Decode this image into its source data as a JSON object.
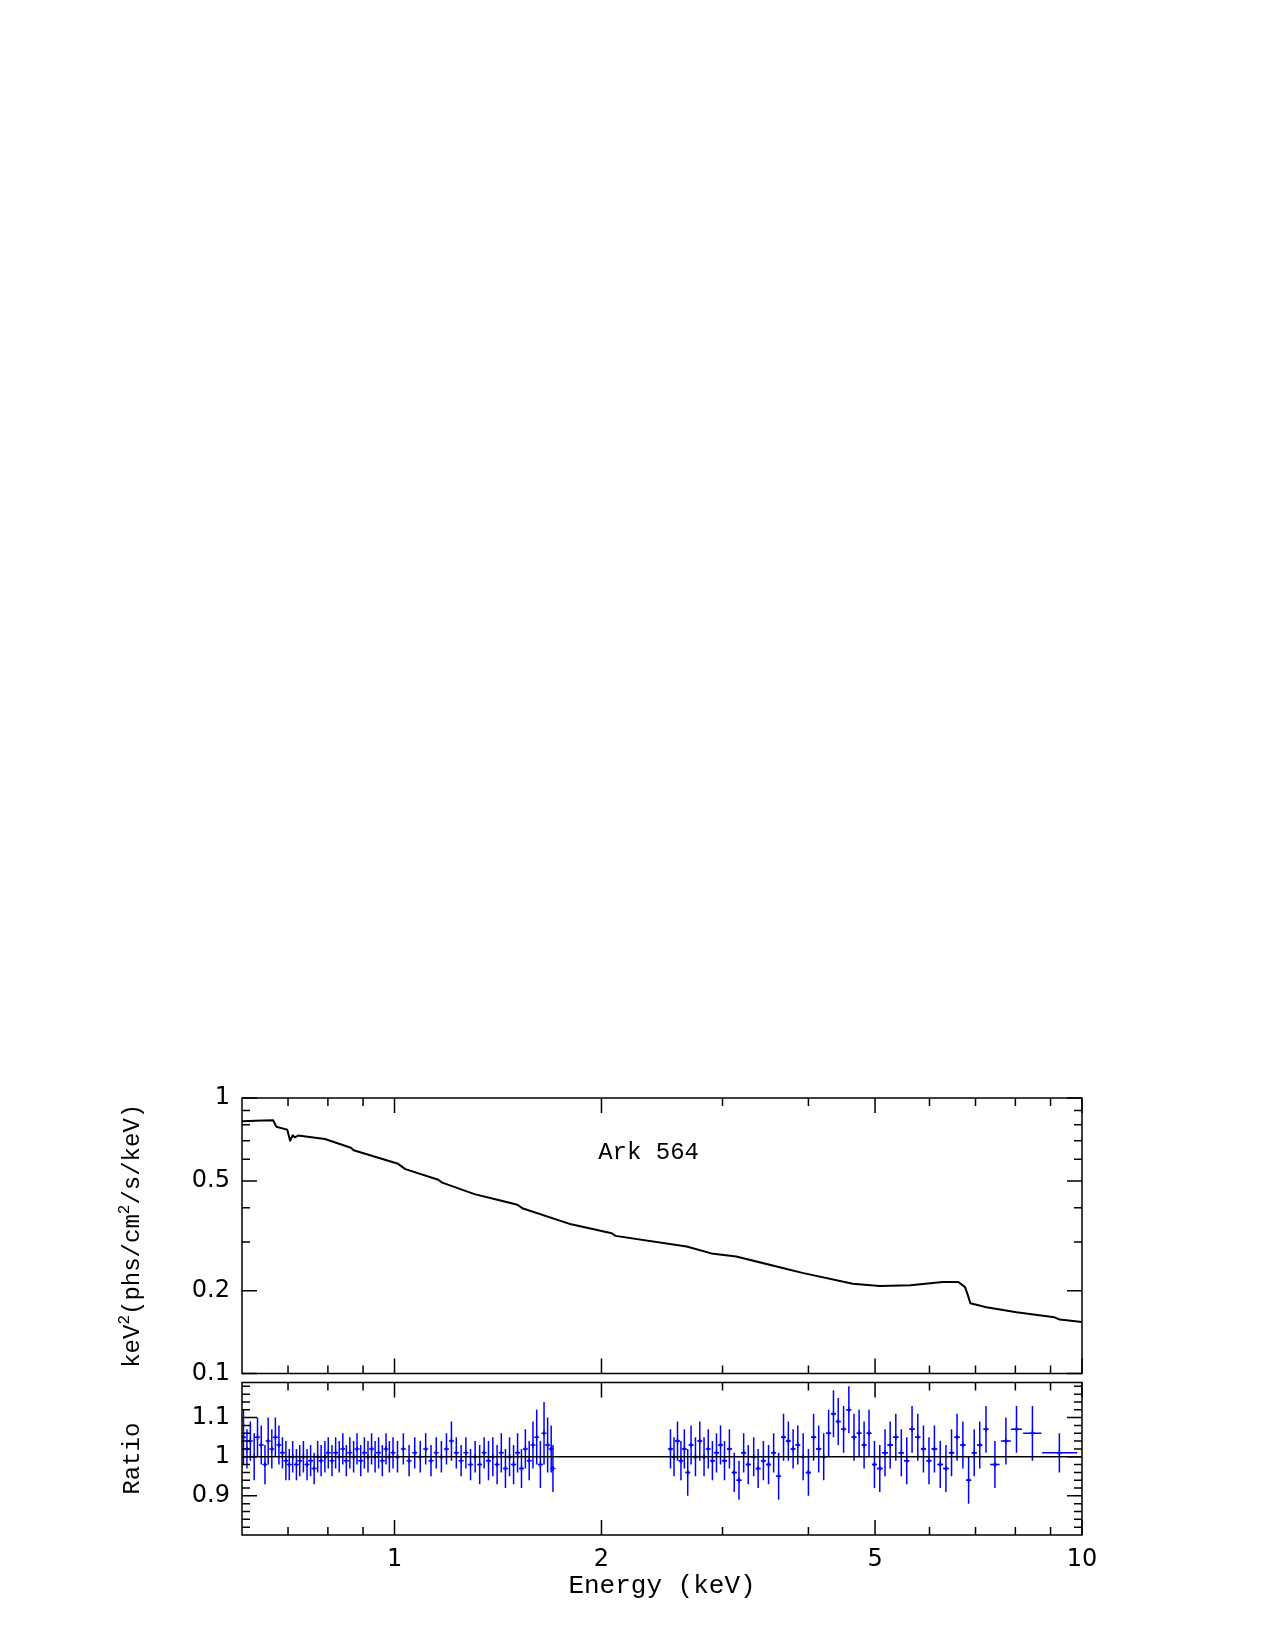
{
  "chart_data": [
    {
      "type": "line",
      "ylabel": "keV$^{2}$(phs/cm$^{2}$/s/keV)",
      "annotations": [
        "Ark 564"
      ],
      "log": "xy",
      "grid": false,
      "legend": false,
      "marker": "none",
      "line_style": "solid",
      "tick_labels": "y",
      "xlim": [
        0.6,
        10
      ],
      "xticks": [
        {
          "value": 0.7,
          "label": null
        },
        {
          "value": 0.8,
          "label": null
        },
        {
          "value": 0.9,
          "label": null
        },
        1,
        2,
        {
          "value": 3,
          "label": null
        },
        {
          "value": 4,
          "label": null
        },
        5,
        {
          "value": 6,
          "label": null
        },
        {
          "value": 7,
          "label": null
        },
        {
          "value": 8,
          "label": null
        },
        {
          "value": 9,
          "label": null
        },
        10
      ],
      "ylim": [
        0.1,
        1
      ],
      "yticks": [
        0.1,
        0.2,
        {
          "value": 0.3,
          "label": null
        },
        {
          "value": 0.4,
          "label": null
        },
        0.5,
        {
          "value": 0.6,
          "label": null
        },
        {
          "value": 0.7,
          "label": null
        },
        {
          "value": 0.8,
          "label": null
        },
        {
          "value": 0.9,
          "label": null
        },
        1
      ],
      "series": [
        {
          "color": "#000000",
          "x": [
            0.6,
            0.666,
            0.673,
            0.698,
            0.705,
            0.711,
            0.716,
            0.724,
            0.792,
            0.864,
            0.872,
            1.012,
            1.037,
            1.158,
            1.173,
            1.307,
            1.509,
            1.538,
            1.807,
            2.07,
            2.096,
            2.66,
            2.89,
            3.14,
            3.92,
            4.64,
            5.08,
            5.63,
            6.27,
            6.61,
            6.76,
            6.83,
            6.88,
            7.26,
            8.03,
            9.12,
            9.28,
            10
          ],
          "values": [
            0.824,
            0.83,
            0.787,
            0.768,
            0.7,
            0.732,
            0.72,
            0.731,
            0.71,
            0.66,
            0.646,
            0.577,
            0.552,
            0.505,
            0.493,
            0.448,
            0.41,
            0.397,
            0.348,
            0.323,
            0.316,
            0.289,
            0.273,
            0.266,
            0.232,
            0.212,
            0.208,
            0.209,
            0.215,
            0.215,
            0.206,
            0.191,
            0.18,
            0.174,
            0.167,
            0.16,
            0.157,
            0.154
          ]
        }
      ]
    },
    {
      "type": "scatter",
      "xlabel": "Energy (keV)",
      "ylabel": "Ratio",
      "log": "x",
      "grid": false,
      "legend": false,
      "marker": "cross",
      "xlim": [
        0.6,
        10
      ],
      "xticks": [
        {
          "value": 0.7,
          "label": null
        },
        {
          "value": 0.8,
          "label": null
        },
        {
          "value": 0.9,
          "label": null
        },
        1,
        2,
        {
          "value": 3,
          "label": null
        },
        {
          "value": 4,
          "label": null
        },
        5,
        {
          "value": 6,
          "label": null
        },
        {
          "value": 7,
          "label": null
        },
        {
          "value": 8,
          "label": null
        },
        {
          "value": 9,
          "label": null
        },
        10
      ],
      "ylim": [
        0.8,
        1.19
      ],
      "yticks": [
        {
          "value": 0.82,
          "label": null
        },
        {
          "value": 0.84,
          "label": null
        },
        {
          "value": 0.86,
          "label": null
        },
        {
          "value": 0.88,
          "label": null
        },
        0.9,
        {
          "value": 0.92,
          "label": null
        },
        {
          "value": 0.94,
          "label": null
        },
        {
          "value": 0.96,
          "label": null
        },
        {
          "value": 0.98,
          "label": null
        },
        1,
        {
          "value": 1.02,
          "label": null
        },
        {
          "value": 1.04,
          "label": null
        },
        {
          "value": 1.06,
          "label": null
        },
        {
          "value": 1.08,
          "label": null
        },
        1.1,
        {
          "value": 1.12,
          "label": null
        },
        {
          "value": 1.14,
          "label": null
        },
        {
          "value": 1.16,
          "label": null
        },
        {
          "value": 1.18,
          "label": null
        }
      ],
      "ref_lines": [
        {
          "axis": "y",
          "value": 1,
          "color": "#000000"
        }
      ],
      "series": [
        {
          "color": "#0000ff",
          "x": [
            0.603,
            0.61,
            0.617,
            0.625,
            0.632,
            0.64,
            0.648,
            0.655,
            0.663,
            0.671,
            0.679,
            0.687,
            0.695,
            0.703,
            0.711,
            0.72,
            0.728,
            0.737,
            0.746,
            0.755,
            0.764,
            0.773,
            0.782,
            0.792,
            0.801,
            0.811,
            0.821,
            0.831,
            0.841,
            0.851,
            0.861,
            0.872,
            0.882,
            0.893,
            0.904,
            0.915,
            0.926,
            0.937,
            0.948,
            0.96,
            0.972,
            0.983,
            0.995,
            1.01,
            1.03,
            1.05,
            1.07,
            1.09,
            1.11,
            1.13,
            1.15,
            1.17,
            1.19,
            1.21,
            1.23,
            1.25,
            1.27,
            1.29,
            1.31,
            1.33,
            1.35,
            1.37,
            1.39,
            1.41,
            1.43,
            1.45,
            1.47,
            1.49,
            1.51,
            1.53,
            1.55,
            1.57,
            1.59,
            1.61,
            1.63,
            1.65,
            1.67,
            1.69,
            1.7,
            2.52,
            2.55,
            2.58,
            2.61,
            2.64,
            2.67,
            2.7,
            2.74,
            2.78,
            2.82,
            2.86,
            2.9,
            2.94,
            2.98,
            3.02,
            3.07,
            3.12,
            3.17,
            3.22,
            3.27,
            3.33,
            3.38,
            3.44,
            3.5,
            3.56,
            3.62,
            3.68,
            3.74,
            3.8,
            3.86,
            3.93,
            4.0,
            4.07,
            4.14,
            4.21,
            4.28,
            4.35,
            4.42,
            4.5,
            4.58,
            4.66,
            4.74,
            4.82,
            4.9,
            4.99,
            5.08,
            5.17,
            5.26,
            5.36,
            5.46,
            5.56,
            5.66,
            5.77,
            5.88,
            5.99,
            6.1,
            6.22,
            6.34,
            6.46,
            6.58,
            6.71,
            6.84,
            6.97,
            7.1,
            7.25,
            7.47,
            7.75,
            8.03,
            8.47,
            9.27
          ],
          "values": [
            1.05,
            1.02,
            1.04,
            1.0,
            1.05,
            1.03,
            0.98,
            1.04,
            1.02,
            1.05,
            1.03,
            1.01,
            0.99,
            0.98,
            1.0,
            0.98,
            0.99,
            1.0,
            0.98,
            0.99,
            0.97,
            1.0,
            0.99,
            1.0,
            1.01,
            0.99,
            1.01,
            1.0,
            1.02,
            0.99,
            1.01,
            1.0,
            1.02,
            0.99,
            1.01,
            1.0,
            1.02,
            1.0,
            1.01,
            0.99,
            1.02,
            1.0,
            1.01,
            1.0,
            1.02,
            0.99,
            1.01,
            1.0,
            1.02,
            0.99,
            1.01,
            1.0,
            1.02,
            1.04,
            1.01,
            0.99,
            1.01,
            0.98,
            1.0,
            0.98,
            1.01,
            0.99,
            1.0,
            0.98,
            1.01,
            0.97,
            1.0,
            0.98,
            1.01,
            0.97,
            1.02,
            0.99,
            1.03,
            1.05,
            0.98,
            1.06,
            1.03,
            1.02,
            0.97,
            1.02,
            1.0,
            1.04,
            0.99,
            1.02,
            0.96,
            1.03,
            1.0,
            1.04,
            1.0,
            1.02,
            0.99,
            1.01,
            1.03,
            0.99,
            1.02,
            0.96,
            0.94,
            1.01,
            0.98,
            1.0,
            0.97,
            0.99,
            0.98,
            1.01,
            0.95,
            1.05,
            1.04,
            1.02,
            1.03,
            1.0,
            0.96,
            1.05,
            1.02,
            1.0,
            1.06,
            1.11,
            1.09,
            1.07,
            1.12,
            1.05,
            1.06,
            1.03,
            1.06,
            0.98,
            0.97,
            1.01,
            1.03,
            1.05,
            1.01,
            0.99,
            1.07,
            1.05,
            1.02,
            0.99,
            1.02,
            0.98,
            0.97,
            1.01,
            1.05,
            1.03,
            0.94,
            1.01,
            1.03,
            1.07,
            0.98,
            1.04,
            1.07,
            1.06,
            1.01
          ],
          "errors": [
            0.07,
            0.05,
            0.05,
            0.06,
            0.05,
            0.05,
            0.05,
            0.06,
            0.05,
            0.05,
            0.05,
            0.04,
            0.05,
            0.04,
            0.04,
            0.04,
            0.04,
            0.04,
            0.04,
            0.04,
            0.04,
            0.04,
            0.04,
            0.04,
            0.04,
            0.04,
            0.04,
            0.04,
            0.04,
            0.04,
            0.04,
            0.04,
            0.04,
            0.04,
            0.04,
            0.04,
            0.04,
            0.04,
            0.04,
            0.04,
            0.04,
            0.04,
            0.04,
            0.04,
            0.04,
            0.04,
            0.04,
            0.04,
            0.04,
            0.04,
            0.04,
            0.04,
            0.04,
            0.05,
            0.04,
            0.04,
            0.04,
            0.04,
            0.04,
            0.05,
            0.04,
            0.05,
            0.05,
            0.05,
            0.05,
            0.05,
            0.05,
            0.05,
            0.05,
            0.05,
            0.05,
            0.05,
            0.06,
            0.07,
            0.06,
            0.08,
            0.07,
            0.06,
            0.06,
            0.05,
            0.05,
            0.05,
            0.05,
            0.05,
            0.06,
            0.05,
            0.05,
            0.05,
            0.05,
            0.05,
            0.05,
            0.05,
            0.05,
            0.05,
            0.05,
            0.05,
            0.05,
            0.05,
            0.05,
            0.05,
            0.05,
            0.05,
            0.05,
            0.05,
            0.06,
            0.06,
            0.05,
            0.05,
            0.05,
            0.06,
            0.06,
            0.06,
            0.06,
            0.06,
            0.06,
            0.06,
            0.06,
            0.06,
            0.06,
            0.06,
            0.06,
            0.06,
            0.06,
            0.06,
            0.06,
            0.06,
            0.06,
            0.06,
            0.06,
            0.06,
            0.06,
            0.06,
            0.06,
            0.06,
            0.06,
            0.06,
            0.06,
            0.06,
            0.06,
            0.06,
            0.06,
            0.06,
            0.06,
            0.06,
            0.06,
            0.06,
            0.06,
            0.07,
            0.05
          ],
          "xerrors": [
            null,
            null,
            null,
            null,
            null,
            null,
            null,
            null,
            null,
            null,
            null,
            null,
            null,
            null,
            null,
            null,
            null,
            null,
            null,
            null,
            null,
            null,
            null,
            null,
            null,
            null,
            null,
            null,
            null,
            null,
            null,
            null,
            null,
            null,
            null,
            null,
            null,
            null,
            null,
            null,
            null,
            null,
            null,
            null,
            null,
            null,
            null,
            null,
            null,
            null,
            null,
            null,
            null,
            null,
            null,
            null,
            null,
            null,
            null,
            null,
            null,
            null,
            null,
            null,
            null,
            null,
            null,
            null,
            null,
            null,
            null,
            null,
            null,
            null,
            null,
            null,
            null,
            null,
            null,
            0.015,
            0.015,
            0.015,
            0.015,
            0.015,
            0.015,
            0.015,
            0.015,
            0.015,
            0.015,
            0.015,
            0.015,
            0.015,
            0.015,
            0.025,
            0.025,
            0.025,
            0.025,
            0.025,
            0.025,
            0.025,
            0.025,
            0.025,
            0.025,
            0.025,
            0.025,
            0.025,
            0.025,
            0.025,
            0.025,
            0.025,
            0.035,
            0.035,
            0.035,
            0.035,
            0.035,
            0.035,
            0.035,
            0.035,
            0.035,
            0.035,
            0.035,
            0.035,
            0.035,
            0.035,
            0.05,
            0.05,
            0.05,
            0.05,
            0.05,
            0.05,
            0.05,
            0.05,
            0.05,
            0.05,
            0.06,
            0.06,
            0.06,
            0.06,
            0.06,
            0.06,
            0.06,
            0.06,
            0.06,
            0.06,
            0.12,
            0.13,
            0.15,
            0.26,
            [
              8.75,
              9.84
            ]
          ]
        }
      ]
    }
  ]
}
